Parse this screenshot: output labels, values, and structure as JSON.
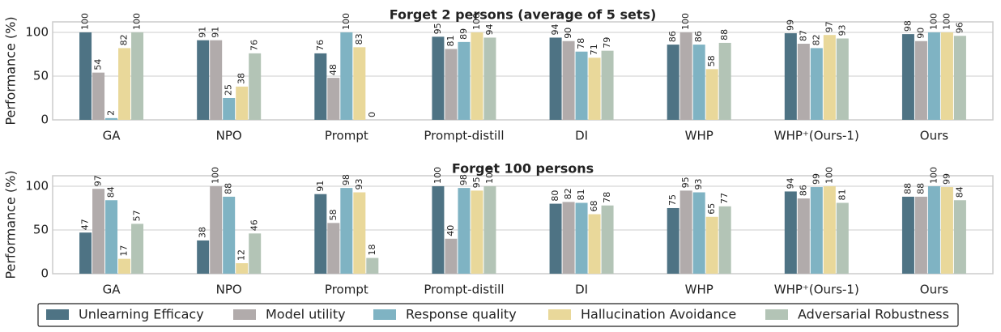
{
  "chart_data": [
    {
      "type": "bar",
      "title": "Forget 2 persons (average of 5 sets)",
      "ylabel": "Performance (%)",
      "categories": [
        "GA",
        "NPO",
        "Prompt",
        "Prompt-distill",
        "DI",
        "WHP",
        "WHP⁺(Ours-1)",
        "Ours"
      ],
      "series": [
        {
          "name": "Unlearning Efficacy",
          "color": "#4e7384",
          "values": [
            100,
            91,
            76,
            95,
            94,
            86,
            99,
            98
          ]
        },
        {
          "name": "Model utility",
          "color": "#b1abab",
          "values": [
            54,
            91,
            48,
            81,
            90,
            100,
            87,
            90
          ]
        },
        {
          "name": "Response quality",
          "color": "#7fb3c3",
          "values": [
            2,
            25,
            100,
            89,
            78,
            86,
            82,
            100
          ]
        },
        {
          "name": "Hallucination Avoidance",
          "color": "#e9d89a",
          "values": [
            82,
            38,
            83,
            100,
            71,
            58,
            97,
            100
          ]
        },
        {
          "name": "Adversarial Robustness",
          "color": "#b3c4b6",
          "values": [
            100,
            76,
            0,
            94,
            79,
            88,
            93,
            96
          ]
        }
      ],
      "ylim": [
        0,
        112
      ],
      "yticks": [
        0,
        50,
        100
      ],
      "grid": true
    },
    {
      "type": "bar",
      "title": "Forget 100 persons",
      "ylabel": "Performance (%)",
      "categories": [
        "GA",
        "NPO",
        "Prompt",
        "Prompt-distill",
        "DI",
        "WHP",
        "WHP⁺(Ours-1)",
        "Ours"
      ],
      "series": [
        {
          "color": "#4e7384",
          "values": [
            47,
            38,
            91,
            100,
            80,
            75,
            94,
            88
          ]
        },
        {
          "color": "#b1abab",
          "values": [
            97,
            100,
            58,
            40,
            82,
            95,
            86,
            88
          ]
        },
        {
          "color": "#7fb3c3",
          "values": [
            84,
            88,
            98,
            98,
            81,
            93,
            99,
            100
          ]
        },
        {
          "color": "#e9d89a",
          "values": [
            17,
            12,
            93,
            95,
            68,
            65,
            100,
            99
          ]
        },
        {
          "color": "#b3c4b6",
          "values": [
            57,
            46,
            18,
            100,
            78,
            77,
            81,
            84
          ]
        }
      ],
      "ylim": [
        0,
        112
      ],
      "yticks": [
        0,
        50,
        100
      ],
      "grid": true
    }
  ]
}
